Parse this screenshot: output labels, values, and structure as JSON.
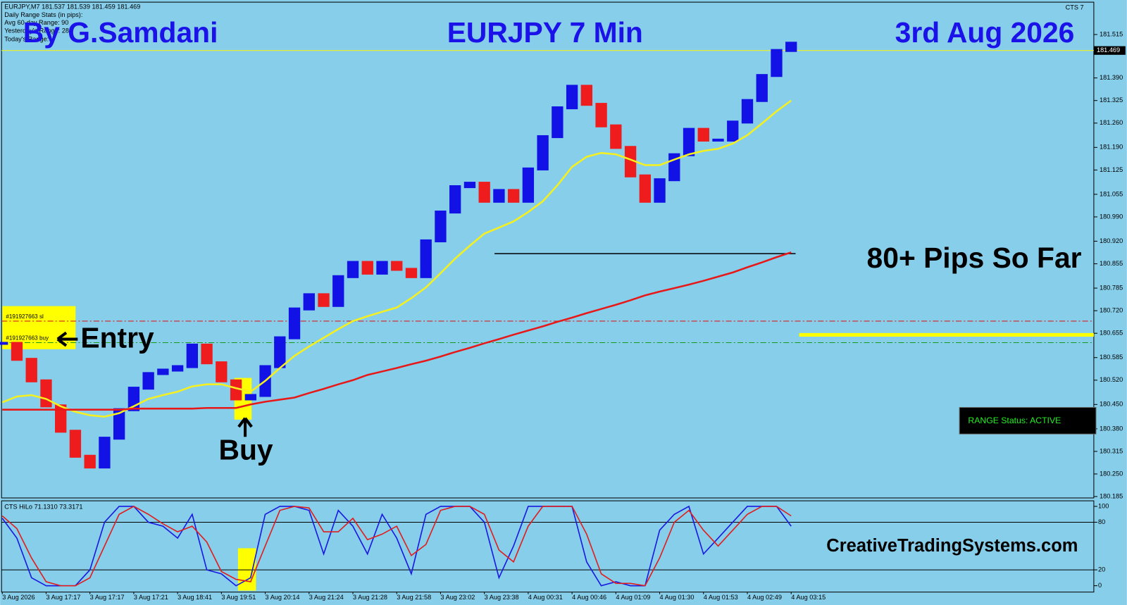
{
  "chart_data": [
    {
      "type": "line",
      "header": "EURJPY,M7  181.537 181.539 181.459 181.469",
      "stats": [
        "Daily Range Stats (in pips):",
        "Avg 60-day Range: 90",
        "Yesterday's Range: 288",
        "Today's Range:"
      ],
      "annotations": {
        "author": "By G.Samdani",
        "title": "EURJPY 7 Min",
        "date": "3rd Aug 2026",
        "pips": "80+ Pips So Far",
        "entry": "Entry",
        "buy": "Buy",
        "site": "CreativeTradingSystems.com",
        "status": "RANGE Status: ACTIVE",
        "indicator": "CTS 7"
      },
      "categories": [
        "3 Aug 2026",
        null,
        null,
        "3 Aug 17:17",
        null,
        null,
        "3 Aug 17:17",
        null,
        null,
        "3 Aug 17:21",
        null,
        null,
        "3 Aug 18:41",
        null,
        null,
        "3 Aug 19:51",
        null,
        null,
        "3 Aug 20:14",
        null,
        null,
        "3 Aug 21:24",
        null,
        null,
        "3 Aug 21:28",
        null,
        null,
        "3 Aug 21:58",
        null,
        null,
        "3 Aug 23:02",
        null,
        null,
        "3 Aug 23:38",
        null,
        null,
        "4 Aug 00:31",
        null,
        null,
        "4 Aug 00:46",
        null,
        null,
        "4 Aug 01:09",
        null,
        null,
        "4 Aug 01:30",
        null,
        null,
        "4 Aug 01:53",
        null,
        null,
        "4 Aug 02:49",
        null,
        null,
        "4 Aug 03:15"
      ],
      "series": [
        {
          "name": "EURJPY",
          "up_color": "#1212e6",
          "down_color": "#ee1c1c",
          "values": [
            180.626,
            180.58,
            180.518,
            180.446,
            180.373,
            180.301,
            180.27,
            180.353,
            180.435,
            180.497,
            180.539,
            180.549,
            180.559,
            180.621,
            180.57,
            180.518,
            180.466,
            180.476,
            180.559,
            180.642,
            180.725,
            180.766,
            180.735,
            180.818,
            180.859,
            180.828,
            180.859,
            180.839,
            180.818,
            180.921,
            181.004,
            181.077,
            181.087,
            181.035,
            181.066,
            181.035,
            181.128,
            181.221,
            181.304,
            181.366,
            181.314,
            181.252,
            181.19,
            181.108,
            181.035,
            181.097,
            181.169,
            181.242,
            181.211,
            181.211,
            181.263,
            181.325,
            181.397,
            181.469,
            181.49
          ]
        },
        {
          "name": "MA fast",
          "color": "#f5f01e",
          "values": [
            180.456,
            180.473,
            180.477,
            180.466,
            180.445,
            180.429,
            180.419,
            180.415,
            180.425,
            180.445,
            180.466,
            180.477,
            180.487,
            180.502,
            180.508,
            180.508,
            180.497,
            180.487,
            180.518,
            180.555,
            180.59,
            180.617,
            180.642,
            180.667,
            180.69,
            180.704,
            180.717,
            180.729,
            180.756,
            180.787,
            180.828,
            180.87,
            180.907,
            180.942,
            180.959,
            180.977,
            181.004,
            181.035,
            181.081,
            181.134,
            181.163,
            181.174,
            181.17,
            181.155,
            181.139,
            181.139,
            181.155,
            181.17,
            181.18,
            181.186,
            181.201,
            181.225,
            181.259,
            181.294,
            181.325
          ]
        },
        {
          "name": "MA slow",
          "color": "#e81818",
          "values": [
            180.435,
            180.435,
            180.435,
            180.435,
            180.435,
            180.435,
            180.435,
            180.435,
            180.435,
            180.438,
            180.438,
            180.438,
            180.438,
            180.438,
            180.44,
            180.44,
            180.44,
            180.45,
            180.458,
            180.464,
            180.47,
            180.483,
            180.495,
            180.508,
            180.52,
            180.535,
            180.545,
            180.555,
            180.566,
            180.576,
            180.588,
            180.601,
            180.613,
            180.626,
            180.638,
            180.651,
            180.663,
            180.675,
            180.688,
            180.7,
            180.713,
            180.725,
            180.737,
            180.75,
            180.764,
            180.775,
            180.785,
            180.795,
            180.806,
            180.818,
            180.83,
            180.845,
            180.859,
            180.874,
            180.888
          ]
        }
      ],
      "ylim": [
        180.181,
        181.604
      ],
      "yticks": [
        181.515,
        {
          "value": 181.39,
          "label": "181.390"
        },
        181.325,
        {
          "value": 181.26,
          "label": "181.260"
        },
        {
          "value": 181.19,
          "label": "181.190"
        },
        181.125,
        181.055,
        {
          "value": 180.99,
          "label": "180.990"
        },
        {
          "value": 180.92,
          "label": "180.920"
        },
        180.855,
        180.785,
        {
          "value": 180.72,
          "label": "180.720"
        },
        180.655,
        180.585,
        {
          "value": 180.52,
          "label": "180.520"
        },
        {
          "value": 180.45,
          "label": "180.450"
        },
        {
          "value": 180.38,
          "label": "180.380"
        },
        180.315,
        {
          "value": 180.25,
          "label": "180.250"
        },
        180.185
      ],
      "last_price": 181.469,
      "orders": [
        {
          "label": "#191927663 sl",
          "value": 180.69,
          "color": "#d82020"
        },
        {
          "label": "#191927663 buy",
          "value": 180.628,
          "color": "#159a15"
        }
      ],
      "grid": false
    },
    {
      "type": "line",
      "title": "CTS HiLo 71.1310 73.3171",
      "series": [
        {
          "name": "HiLo K",
          "color": "#1a1ae0",
          "values": [
            85,
            60,
            10,
            0,
            0,
            0,
            20,
            80,
            100,
            100,
            80,
            75,
            60,
            90,
            20,
            15,
            0,
            10,
            90,
            100,
            100,
            95,
            40,
            95,
            75,
            40,
            90,
            60,
            15,
            90,
            100,
            100,
            100,
            80,
            10,
            50,
            100,
            100,
            100,
            100,
            30,
            0,
            5,
            0,
            0,
            70,
            90,
            100,
            40,
            60,
            80,
            100,
            100,
            100,
            75
          ]
        },
        {
          "name": "HiLo D",
          "color": "#e01e1e",
          "values": [
            88,
            72,
            35,
            5,
            0,
            0,
            10,
            50,
            90,
            100,
            90,
            78,
            68,
            75,
            55,
            18,
            8,
            5,
            50,
            95,
            100,
            98,
            68,
            68,
            85,
            58,
            65,
            75,
            38,
            52,
            95,
            100,
            100,
            90,
            45,
            30,
            75,
            100,
            100,
            100,
            65,
            15,
            3,
            3,
            0,
            35,
            80,
            95,
            70,
            50,
            70,
            90,
            100,
            100,
            88
          ]
        }
      ],
      "ylim": [
        -8,
        107
      ],
      "yticks": [
        0,
        20,
        80,
        100
      ],
      "levels": [
        20,
        80
      ]
    }
  ]
}
